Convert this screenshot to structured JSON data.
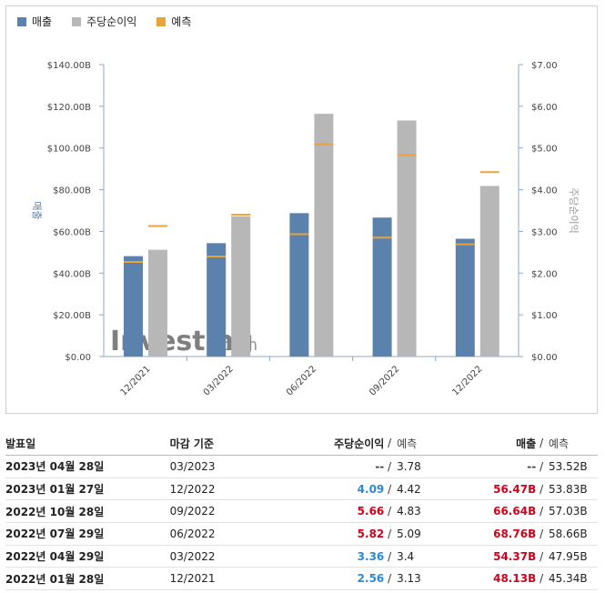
{
  "legend": {
    "revenue": "매출",
    "eps": "주당순이익",
    "forecast": "예측"
  },
  "colors": {
    "revenue": "#5b82ad",
    "eps": "#b7b7b7",
    "forecast": "#e8a33a",
    "value_beat": "#d0021b",
    "value_blue": "#2a8ad8"
  },
  "watermark": {
    "brand": "Investing",
    "suffix": ".com"
  },
  "chart_data": {
    "type": "bar",
    "categories": [
      "12/2021",
      "03/2022",
      "06/2022",
      "09/2022",
      "12/2022"
    ],
    "series": [
      {
        "name": "매출",
        "axis": "left",
        "values": [
          48.13,
          54.37,
          68.76,
          66.64,
          56.47
        ],
        "forecast": [
          45.34,
          47.95,
          58.66,
          57.03,
          53.83
        ]
      },
      {
        "name": "주당순이익",
        "axis": "right",
        "values": [
          2.56,
          3.36,
          5.82,
          5.66,
          4.09
        ],
        "forecast": [
          3.13,
          3.4,
          5.09,
          4.83,
          4.42
        ]
      }
    ],
    "ylabel": "매출",
    "y2label": "주당순이익",
    "ylim": [
      0,
      140
    ],
    "y2lim": [
      0,
      7
    ],
    "yticks": [
      "$0.00",
      "$20.00B",
      "$40.00B",
      "$60.00B",
      "$80.00B",
      "$100.00B",
      "$120.00B",
      "$140.00B"
    ],
    "y2ticks": [
      "$0.00",
      "$1.00",
      "$2.00",
      "$3.00",
      "$4.00",
      "$5.00",
      "$6.00",
      "$7.00"
    ],
    "legend_position": "top-left",
    "grid": false
  },
  "table": {
    "headers": {
      "date": "발표일",
      "period": "마감 기준",
      "eps": "주당순이익",
      "eps_forecast": "예측",
      "revenue": "매출",
      "revenue_forecast": "예측",
      "sep": "/"
    },
    "rows": [
      {
        "date": "2023년 04월 28일",
        "period": "03/2023",
        "eps": "--",
        "eps_color": "plain",
        "eps_forecast": "3.78",
        "revenue": "--",
        "revenue_color": "plain",
        "revenue_forecast": "53.52B"
      },
      {
        "date": "2023년 01월 27일",
        "period": "12/2022",
        "eps": "4.09",
        "eps_color": "blue",
        "eps_forecast": "4.42",
        "revenue": "56.47B",
        "revenue_color": "red",
        "revenue_forecast": "53.83B"
      },
      {
        "date": "2022년 10월 28일",
        "period": "09/2022",
        "eps": "5.66",
        "eps_color": "red",
        "eps_forecast": "4.83",
        "revenue": "66.64B",
        "revenue_color": "red",
        "revenue_forecast": "57.03B"
      },
      {
        "date": "2022년 07월 29일",
        "period": "06/2022",
        "eps": "5.82",
        "eps_color": "red",
        "eps_forecast": "5.09",
        "revenue": "68.76B",
        "revenue_color": "red",
        "revenue_forecast": "58.66B"
      },
      {
        "date": "2022년 04월 29일",
        "period": "03/2022",
        "eps": "3.36",
        "eps_color": "blue",
        "eps_forecast": "3.4",
        "revenue": "54.37B",
        "revenue_color": "red",
        "revenue_forecast": "47.95B"
      },
      {
        "date": "2022년 01월 28일",
        "period": "12/2021",
        "eps": "2.56",
        "eps_color": "blue",
        "eps_forecast": "3.13",
        "revenue": "48.13B",
        "revenue_color": "red",
        "revenue_forecast": "45.34B"
      }
    ]
  }
}
